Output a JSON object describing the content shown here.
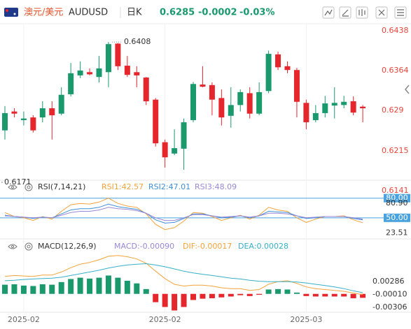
{
  "header": {
    "pair": "澳元/美元",
    "symbol": "AUDUSD",
    "period": "日K",
    "price": "0.6285",
    "change": "-0.0002",
    "change_pct": "-0.03%"
  },
  "chart_data": [
    {
      "type": "candlestick",
      "categories": [
        null,
        null,
        "2025-02",
        null,
        null,
        null,
        null,
        null,
        null,
        null,
        null,
        null,
        null,
        null,
        null,
        null,
        null,
        "2025-02",
        null,
        null,
        null,
        null,
        null,
        null,
        null,
        null,
        null,
        null,
        null,
        null,
        null,
        null,
        "2025-03",
        null,
        null,
        null,
        null,
        null,
        null
      ],
      "open": [
        0.6244,
        0.6279,
        0.6263,
        0.6268,
        0.6268,
        0.6285,
        0.6275,
        0.6311,
        0.6346,
        0.6352,
        0.6343,
        0.6352,
        0.6405,
        0.6364,
        0.6352,
        0.6342,
        0.6301,
        0.6222,
        0.6201,
        0.621,
        0.6263,
        0.6329,
        0.6328,
        0.6304,
        0.6271,
        0.6291,
        0.6313,
        0.6275,
        0.6317,
        0.6385,
        0.6363,
        0.6356,
        0.6295,
        0.6263,
        0.6276,
        0.629,
        0.6291,
        0.6298,
        0.6288
      ],
      "high": [
        0.6289,
        0.6285,
        0.6279,
        0.6272,
        0.6298,
        0.6298,
        0.6324,
        0.6369,
        0.6372,
        0.6359,
        0.6382,
        0.6408,
        0.6406,
        0.6382,
        0.6363,
        0.6343,
        0.6304,
        0.6227,
        0.6246,
        0.6266,
        0.6334,
        0.6363,
        0.6333,
        0.632,
        0.6324,
        0.632,
        0.6324,
        0.6333,
        0.6392,
        0.639,
        0.6372,
        0.636,
        0.6301,
        0.6291,
        0.6308,
        0.6324,
        0.6308,
        0.6307,
        0.6291
      ],
      "low": [
        0.6227,
        0.6268,
        0.6253,
        0.624,
        0.6259,
        0.6227,
        0.6272,
        0.6307,
        0.6341,
        0.6346,
        0.6333,
        0.6324,
        0.6356,
        0.6343,
        0.6324,
        0.6291,
        0.6214,
        0.6175,
        0.6198,
        0.6171,
        0.6259,
        0.6324,
        0.6272,
        0.6253,
        0.6249,
        0.6279,
        0.6266,
        0.6272,
        0.6313,
        0.6356,
        0.635,
        0.6268,
        0.6246,
        0.6259,
        0.6268,
        0.6266,
        0.6285,
        0.6272,
        0.6259
      ],
      "close": [
        0.6276,
        0.6275,
        0.6266,
        0.6244,
        0.6285,
        0.6272,
        0.631,
        0.635,
        0.6355,
        0.6348,
        0.6359,
        0.6404,
        0.6363,
        0.6347,
        0.6346,
        0.6298,
        0.622,
        0.6194,
        0.6211,
        0.6259,
        0.633,
        0.6325,
        0.6301,
        0.6268,
        0.6291,
        0.6315,
        0.6275,
        0.6315,
        0.6386,
        0.6361,
        0.6356,
        0.6297,
        0.6259,
        0.6276,
        0.6294,
        0.6295,
        0.6297,
        0.6277,
        0.6285
      ],
      "up_color": "#1a9a6c",
      "down_color": "#e5262d",
      "tick_color": "#e5453c",
      "ylim": [
        0.6123,
        0.6447
      ],
      "yticks": [
        0.6141,
        0.6215,
        0.629,
        0.6364,
        0.6438
      ],
      "annotations": [
        {
          "label": "0.6408",
          "value": 0.6408
        },
        {
          "label": "0.6171",
          "value": 0.6171
        }
      ]
    },
    {
      "type": "line",
      "title": "RSI(7,14,21)",
      "series": [
        {
          "name": "RSI1:42.57",
          "color": "#f2a33a",
          "values": [
            58,
            52,
            50,
            46,
            52,
            48,
            60,
            70,
            72,
            71,
            74,
            80,
            72,
            68,
            66,
            56,
            40,
            32,
            35,
            45,
            58,
            57,
            52,
            46,
            50,
            54,
            48,
            54,
            66,
            62,
            60,
            50,
            43,
            48,
            52,
            52,
            53,
            47,
            42.57
          ]
        },
        {
          "name": "RSI2:47.01",
          "color": "#3f8fd8",
          "values": [
            54,
            52,
            51,
            49,
            51,
            50,
            56,
            62,
            64,
            64,
            66,
            71,
            67,
            65,
            63,
            57,
            47,
            42,
            43,
            49,
            56,
            56,
            53,
            50,
            51,
            53,
            50,
            53,
            60,
            59,
            58,
            53,
            49,
            50,
            52,
            52,
            52,
            49,
            47.01
          ]
        },
        {
          "name": "RSI3:48.09",
          "color": "#9b87d6",
          "values": [
            53,
            52,
            51,
            50,
            51,
            50,
            54,
            58,
            60,
            60,
            62,
            66,
            64,
            63,
            61,
            57,
            50,
            46,
            46,
            50,
            55,
            55,
            53,
            51,
            52,
            53,
            51,
            53,
            57,
            57,
            56,
            53,
            50,
            51,
            52,
            52,
            52,
            50,
            48.09
          ]
        }
      ],
      "ref_lines": [
        {
          "value": 80,
          "label": "80.00"
        },
        {
          "value": 50,
          "label": "50.00"
        }
      ],
      "ref_color": "#4aa3df",
      "ylim": [
        20,
        85
      ],
      "yticks": [
        {
          "value": 80.9,
          "label": "80.90"
        },
        23.51
      ]
    },
    {
      "type": "macd",
      "title": "MACD(12,26,9)",
      "histogram": {
        "name": "MACD:-0.00090",
        "color": "#9b87d6",
        "up_color": "#1a9a6c",
        "down_color": "#e5262d",
        "values": [
          0.0021,
          0.0022,
          0.0019,
          0.0018,
          0.0022,
          0.0021,
          0.0027,
          0.0034,
          0.0037,
          0.0035,
          0.0037,
          0.0042,
          0.0037,
          0.003,
          0.0024,
          0.0011,
          -0.0019,
          -0.003,
          -0.0038,
          -0.003,
          -0.0014,
          -0.0011,
          -0.001,
          -0.0008,
          -0.0006,
          -0.0003,
          -0.0005,
          -0.0002,
          0.001,
          0.0011,
          0.001,
          0.0003,
          -0.0005,
          -0.0006,
          -0.0006,
          -0.0006,
          -0.0006,
          -0.001,
          -0.0009
        ]
      },
      "series": [
        {
          "name": "DIF:-0.00017",
          "color": "#f2a33a",
          "values": [
            0.004,
            0.0042,
            0.0041,
            0.004,
            0.0043,
            0.0043,
            0.005,
            0.006,
            0.0068,
            0.0072,
            0.0078,
            0.0086,
            0.0088,
            0.0085,
            0.008,
            0.007,
            0.0052,
            0.0035,
            0.0022,
            0.0018,
            0.002,
            0.002,
            0.0018,
            0.0014,
            0.0012,
            0.0012,
            0.0008,
            0.001,
            0.0022,
            0.0028,
            0.003,
            0.0024,
            0.0016,
            0.0012,
            0.001,
            0.0008,
            0.0006,
            0.0002,
            -0.00017
          ]
        },
        {
          "name": "DEA:0.00028",
          "color": "#36b0c8",
          "values": [
            0.003,
            0.0031,
            0.0033,
            0.0034,
            0.0035,
            0.0036,
            0.0038,
            0.0042,
            0.0046,
            0.005,
            0.0054,
            0.0059,
            0.0063,
            0.0066,
            0.0068,
            0.0069,
            0.0066,
            0.0062,
            0.0057,
            0.0052,
            0.0048,
            0.0045,
            0.0042,
            0.0039,
            0.0036,
            0.0034,
            0.0031,
            0.0029,
            0.0028,
            0.0028,
            0.0028,
            0.0027,
            0.0025,
            0.0022,
            0.0019,
            0.0016,
            0.0012,
            0.0007,
            0.00028
          ]
        }
      ],
      "ylim": [
        -0.0042,
        0.0121
      ],
      "yticks": [
        0.00286,
        {
          "value": -0.0001,
          "label": "-0.00010"
        },
        -0.00306
      ]
    }
  ]
}
